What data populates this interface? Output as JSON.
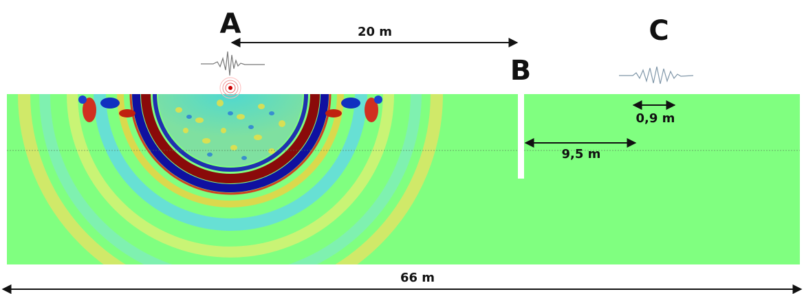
{
  "labels": {
    "a": "A",
    "b": "B",
    "c": "C"
  },
  "dimensions": {
    "source_to_slot": "20 m",
    "slot_to_receiver": "9,5 m",
    "wavelength": "0,9 m",
    "model_width": "66 m"
  }
}
